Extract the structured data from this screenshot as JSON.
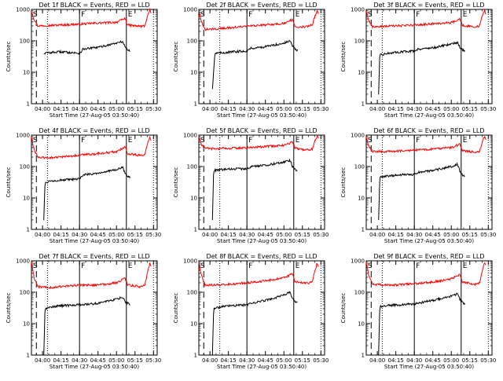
{
  "colors": {
    "events": "#000000",
    "lld": "#ff0000",
    "axes": "#000000",
    "background": "#ffffff"
  },
  "chart_data": [
    {
      "type": "line",
      "title": "Det 1f BLACK = Events, RED = LLD",
      "xlabel": "Start Time (27-Aug-05 03:50:40)",
      "ylabel": "Counts/sec",
      "yscale": "log",
      "ylim": [
        1,
        1000
      ],
      "yticks": [
        "1",
        "10",
        "100",
        "1000"
      ],
      "xlim": [
        "03:51",
        "05:33"
      ],
      "xticks": [
        "04:00",
        "04:15",
        "04:30",
        "04:45",
        "05:00",
        "05:15",
        "05:30"
      ],
      "segment_labels": [
        "S",
        "F",
        "E"
      ],
      "segment_lines": [
        "04:30",
        "05:08"
      ],
      "dashed_lines": [
        "03:55"
      ],
      "dotted_lines": [
        "04:04",
        "05:30"
      ],
      "series": [
        {
          "color": "red",
          "x": [
            "03:51",
            "03:53",
            "03:56",
            "04:05",
            "04:15",
            "04:30",
            "04:45",
            "05:00",
            "05:07",
            "05:09",
            "05:15",
            "05:20",
            "05:23",
            "05:25",
            "05:27",
            "05:28"
          ],
          "y": [
            900,
            500,
            300,
            310,
            320,
            340,
            370,
            390,
            520,
            320,
            300,
            290,
            300,
            600,
            950,
            700
          ]
        },
        {
          "color": "black",
          "x": [
            "04:01",
            "04:05",
            "04:15",
            "04:25",
            "04:30",
            "04:33",
            "04:45",
            "05:00",
            "05:05",
            "05:07",
            "05:09",
            "05:11"
          ],
          "y": [
            40,
            42,
            45,
            42,
            40,
            55,
            62,
            85,
            95,
            65,
            52,
            48
          ]
        }
      ]
    },
    {
      "type": "line",
      "title": "Det 2f BLACK = Events, RED = LLD",
      "xlabel": "Start Time (27-Aug-05 03:50:40)",
      "ylabel": "Counts/sec",
      "yscale": "log",
      "ylim": [
        1,
        1000
      ],
      "yticks": [
        "1",
        "10",
        "100",
        "1000"
      ],
      "xlim": [
        "03:51",
        "05:33"
      ],
      "xticks": [
        "04:00",
        "04:15",
        "04:30",
        "04:45",
        "05:00",
        "05:15",
        "05:30"
      ],
      "segment_labels": [
        "S",
        "F",
        "E"
      ],
      "segment_lines": [
        "04:30",
        "05:08"
      ],
      "dashed_lines": [
        "03:55"
      ],
      "dotted_lines": [
        "04:08",
        "05:30"
      ],
      "series": [
        {
          "color": "red",
          "x": [
            "03:51",
            "03:53",
            "03:56",
            "04:05",
            "04:15",
            "04:30",
            "04:45",
            "05:00",
            "05:07",
            "05:09",
            "05:15",
            "05:20",
            "05:23",
            "05:25",
            "05:27",
            "05:28"
          ],
          "y": [
            900,
            400,
            230,
            240,
            260,
            290,
            320,
            360,
            480,
            290,
            280,
            300,
            320,
            600,
            950,
            700
          ]
        },
        {
          "color": "black",
          "x": [
            "04:02",
            "04:04",
            "04:10",
            "04:20",
            "04:30",
            "04:33",
            "04:45",
            "05:00",
            "05:05",
            "05:07",
            "05:09",
            "05:11"
          ],
          "y": [
            3,
            40,
            42,
            45,
            48,
            58,
            65,
            85,
            100,
            68,
            55,
            50
          ]
        }
      ]
    },
    {
      "type": "line",
      "title": "Det 3f BLACK = Events, RED = LLD",
      "xlabel": "Start Time (27-Aug-05 03:50:40)",
      "ylabel": "Counts/sec",
      "yscale": "log",
      "ylim": [
        1,
        1000
      ],
      "yticks": [
        "1",
        "10",
        "100",
        "1000"
      ],
      "xlim": [
        "03:51",
        "05:33"
      ],
      "xticks": [
        "04:00",
        "04:15",
        "04:30",
        "04:45",
        "05:00",
        "05:15",
        "05:30"
      ],
      "segment_labels": [
        "S",
        "F",
        "E"
      ],
      "segment_lines": [
        "04:30",
        "05:08"
      ],
      "dashed_lines": [
        "03:55"
      ],
      "dotted_lines": [
        "04:04",
        "05:30"
      ],
      "series": [
        {
          "color": "red",
          "x": [
            "03:51",
            "03:53",
            "03:56",
            "04:05",
            "04:15",
            "04:30",
            "04:45",
            "05:00",
            "05:07",
            "05:09",
            "05:15",
            "05:20",
            "05:23",
            "05:25",
            "05:27",
            "05:28"
          ],
          "y": [
            900,
            450,
            280,
            290,
            300,
            320,
            350,
            380,
            500,
            310,
            290,
            280,
            300,
            600,
            950,
            700
          ]
        },
        {
          "color": "black",
          "x": [
            "04:01",
            "04:02",
            "04:08",
            "04:20",
            "04:30",
            "04:33",
            "04:45",
            "05:00",
            "05:05",
            "05:07",
            "05:09",
            "05:11"
          ],
          "y": [
            2,
            35,
            40,
            45,
            48,
            55,
            60,
            80,
            90,
            62,
            52,
            48
          ]
        }
      ]
    },
    {
      "type": "line",
      "title": "Det 4f BLACK = Events, RED = LLD",
      "xlabel": "Start Time (27-Aug-05 03:50:40)",
      "ylabel": "Counts/sec",
      "yscale": "log",
      "ylim": [
        1,
        1000
      ],
      "yticks": [
        "1",
        "10",
        "100",
        "1000"
      ],
      "xlim": [
        "03:51",
        "05:33"
      ],
      "xticks": [
        "04:00",
        "04:15",
        "04:30",
        "04:45",
        "05:00",
        "05:15",
        "05:30"
      ],
      "segment_labels": [
        "S",
        "F",
        "E"
      ],
      "segment_lines": [
        "04:30",
        "05:08"
      ],
      "dashed_lines": [
        "03:55"
      ],
      "dotted_lines": [
        "04:04",
        "05:30"
      ],
      "series": [
        {
          "color": "red",
          "x": [
            "03:51",
            "03:53",
            "03:56",
            "04:05",
            "04:15",
            "04:30",
            "04:45",
            "05:00",
            "05:07",
            "05:09",
            "05:15",
            "05:20",
            "05:23",
            "05:25",
            "05:27",
            "05:28"
          ],
          "y": [
            900,
            350,
            200,
            190,
            200,
            230,
            260,
            300,
            420,
            260,
            240,
            220,
            240,
            500,
            900,
            700
          ]
        },
        {
          "color": "black",
          "x": [
            "04:01",
            "04:02",
            "04:06",
            "04:20",
            "04:30",
            "04:33",
            "04:45",
            "05:00",
            "05:05",
            "05:07",
            "05:09",
            "05:11"
          ],
          "y": [
            2,
            30,
            35,
            38,
            40,
            55,
            62,
            80,
            95,
            60,
            50,
            45
          ]
        }
      ]
    },
    {
      "type": "line",
      "title": "Det 5f BLACK = Events, RED = LLD",
      "xlabel": "Start Time (27-Aug-05 03:50:40)",
      "ylabel": "Counts/sec",
      "yscale": "log",
      "ylim": [
        1,
        1000
      ],
      "yticks": [
        "1",
        "10",
        "100",
        "1000"
      ],
      "xlim": [
        "03:51",
        "05:33"
      ],
      "xticks": [
        "04:00",
        "04:15",
        "04:30",
        "04:45",
        "05:00",
        "05:15",
        "05:30"
      ],
      "segment_labels": [
        "S",
        "F",
        "E"
      ],
      "segment_lines": [
        "04:30",
        "05:08"
      ],
      "dashed_lines": [
        "03:55"
      ],
      "dotted_lines": [
        "04:08",
        "05:30"
      ],
      "series": [
        {
          "color": "red",
          "x": [
            "03:51",
            "03:53",
            "03:56",
            "04:05",
            "04:15",
            "04:30",
            "04:45",
            "05:00",
            "05:07",
            "05:09",
            "05:15",
            "05:20",
            "05:23",
            "05:25",
            "05:27",
            "05:28"
          ],
          "y": [
            900,
            500,
            380,
            370,
            380,
            400,
            430,
            480,
            600,
            380,
            350,
            340,
            360,
            650,
            950,
            750
          ]
        },
        {
          "color": "black",
          "x": [
            "04:02",
            "04:03",
            "04:10",
            "04:20",
            "04:30",
            "04:33",
            "04:45",
            "05:00",
            "05:05",
            "05:07",
            "05:09",
            "05:11"
          ],
          "y": [
            2,
            75,
            80,
            85,
            85,
            100,
            110,
            140,
            160,
            100,
            80,
            75
          ]
        }
      ]
    },
    {
      "type": "line",
      "title": "Det 6f BLACK = Events, RED = LLD",
      "xlabel": "Start Time (27-Aug-05 03:50:40)",
      "ylabel": "Counts/sec",
      "yscale": "log",
      "ylim": [
        1,
        1000
      ],
      "yticks": [
        "1",
        "10",
        "100",
        "1000"
      ],
      "xlim": [
        "03:51",
        "05:33"
      ],
      "xticks": [
        "04:00",
        "04:15",
        "04:30",
        "04:45",
        "05:00",
        "05:15",
        "05:30"
      ],
      "segment_labels": [
        "S",
        "F",
        "E"
      ],
      "segment_lines": [
        "04:30",
        "05:08"
      ],
      "dashed_lines": [
        "03:55"
      ],
      "dotted_lines": [
        "04:04",
        "05:30"
      ],
      "series": [
        {
          "color": "red",
          "x": [
            "03:51",
            "03:53",
            "03:56",
            "04:05",
            "04:15",
            "04:30",
            "04:45",
            "05:00",
            "05:07",
            "05:09",
            "05:15",
            "05:20",
            "05:23",
            "05:25",
            "05:27",
            "05:28"
          ],
          "y": [
            900,
            450,
            300,
            300,
            310,
            330,
            360,
            400,
            520,
            320,
            300,
            290,
            300,
            600,
            950,
            700
          ]
        },
        {
          "color": "black",
          "x": [
            "04:01",
            "04:02",
            "04:08",
            "04:20",
            "04:30",
            "04:33",
            "04:45",
            "05:00",
            "05:05",
            "05:07",
            "05:09",
            "05:11"
          ],
          "y": [
            2,
            45,
            50,
            55,
            55,
            65,
            75,
            100,
            120,
            70,
            55,
            50
          ]
        }
      ]
    },
    {
      "type": "line",
      "title": "Det 7f BLACK = Events, RED = LLD",
      "xlabel": "Start Time (27-Aug-05 03:50:40)",
      "ylabel": "Counts/sec",
      "yscale": "log",
      "ylim": [
        1,
        1000
      ],
      "yticks": [
        "1",
        "10",
        "100",
        "1000"
      ],
      "xlim": [
        "03:51",
        "05:33"
      ],
      "xticks": [
        "04:00",
        "04:15",
        "04:30",
        "04:45",
        "05:00",
        "05:15",
        "05:30"
      ],
      "segment_labels": [
        "S",
        "F",
        "E"
      ],
      "segment_lines": [
        "04:30",
        "05:08"
      ],
      "dashed_lines": [
        "03:55"
      ],
      "dotted_lines": [
        "04:04",
        "05:30"
      ],
      "series": [
        {
          "color": "red",
          "x": [
            "03:51",
            "03:53",
            "03:56",
            "04:05",
            "04:15",
            "04:30",
            "04:45",
            "05:00",
            "05:07",
            "05:09",
            "05:15",
            "05:20",
            "05:23",
            "05:25",
            "05:27",
            "05:28"
          ],
          "y": [
            900,
            300,
            150,
            140,
            150,
            170,
            170,
            200,
            280,
            170,
            160,
            150,
            170,
            400,
            850,
            700
          ]
        },
        {
          "color": "black",
          "x": [
            "04:01",
            "04:02",
            "04:08",
            "04:20",
            "04:30",
            "04:33",
            "04:45",
            "05:00",
            "05:05",
            "05:07",
            "05:09",
            "05:11"
          ],
          "y": [
            1,
            30,
            35,
            38,
            40,
            40,
            45,
            60,
            70,
            50,
            45,
            40
          ]
        }
      ]
    },
    {
      "type": "line",
      "title": "Det 8f BLACK = Events, RED = LLD",
      "xlabel": "Start Time (27-Aug-05 03:50:40)",
      "ylabel": "Counts/sec",
      "yscale": "log",
      "ylim": [
        1,
        1000
      ],
      "yticks": [
        "1",
        "10",
        "100",
        "1000"
      ],
      "xlim": [
        "03:51",
        "05:33"
      ],
      "xticks": [
        "04:00",
        "04:15",
        "04:30",
        "04:45",
        "05:00",
        "05:15",
        "05:30"
      ],
      "segment_labels": [
        "S",
        "F",
        "E"
      ],
      "segment_lines": [
        "04:30",
        "05:08"
      ],
      "dashed_lines": [
        "03:55"
      ],
      "dotted_lines": [
        "04:08",
        "05:30"
      ],
      "series": [
        {
          "color": "red",
          "x": [
            "03:51",
            "03:53",
            "03:56",
            "04:05",
            "04:15",
            "04:30",
            "04:45",
            "05:00",
            "05:07",
            "05:09",
            "05:15",
            "05:20",
            "05:23",
            "05:25",
            "05:27",
            "05:28"
          ],
          "y": [
            900,
            350,
            170,
            170,
            180,
            200,
            230,
            290,
            380,
            220,
            200,
            190,
            210,
            450,
            850,
            700
          ]
        },
        {
          "color": "black",
          "x": [
            "04:02",
            "04:03",
            "04:10",
            "04:20",
            "04:30",
            "04:33",
            "04:45",
            "05:00",
            "05:05",
            "05:07",
            "05:09",
            "05:11"
          ],
          "y": [
            1,
            30,
            35,
            38,
            40,
            45,
            55,
            80,
            100,
            60,
            50,
            45
          ]
        }
      ]
    },
    {
      "type": "line",
      "title": "Det 9f BLACK = Events, RED = LLD",
      "xlabel": "Start Time (27-Aug-05 03:50:40)",
      "ylabel": "Counts/sec",
      "yscale": "log",
      "ylim": [
        1,
        1000
      ],
      "yticks": [
        "1",
        "10",
        "100",
        "1000"
      ],
      "xlim": [
        "03:51",
        "05:33"
      ],
      "xticks": [
        "04:00",
        "04:15",
        "04:30",
        "04:45",
        "05:00",
        "05:15",
        "05:30"
      ],
      "segment_labels": [
        "S",
        "F",
        "E"
      ],
      "segment_lines": [
        "04:30",
        "05:08"
      ],
      "dashed_lines": [
        "03:55"
      ],
      "dotted_lines": [
        "04:04",
        "05:30"
      ],
      "series": [
        {
          "color": "red",
          "x": [
            "03:51",
            "03:53",
            "03:56",
            "04:05",
            "04:15",
            "04:30",
            "04:45",
            "05:00",
            "05:07",
            "05:09",
            "05:15",
            "05:20",
            "05:23",
            "05:25",
            "05:27",
            "05:28"
          ],
          "y": [
            900,
            350,
            180,
            170,
            170,
            190,
            210,
            270,
            360,
            210,
            190,
            180,
            200,
            450,
            850,
            700
          ]
        },
        {
          "color": "black",
          "x": [
            "04:01",
            "04:02",
            "04:08",
            "04:20",
            "04:30",
            "04:33",
            "04:45",
            "05:00",
            "05:05",
            "05:07",
            "05:09",
            "05:11"
          ],
          "y": [
            1,
            35,
            38,
            40,
            42,
            45,
            55,
            75,
            90,
            58,
            48,
            42
          ]
        }
      ]
    }
  ]
}
